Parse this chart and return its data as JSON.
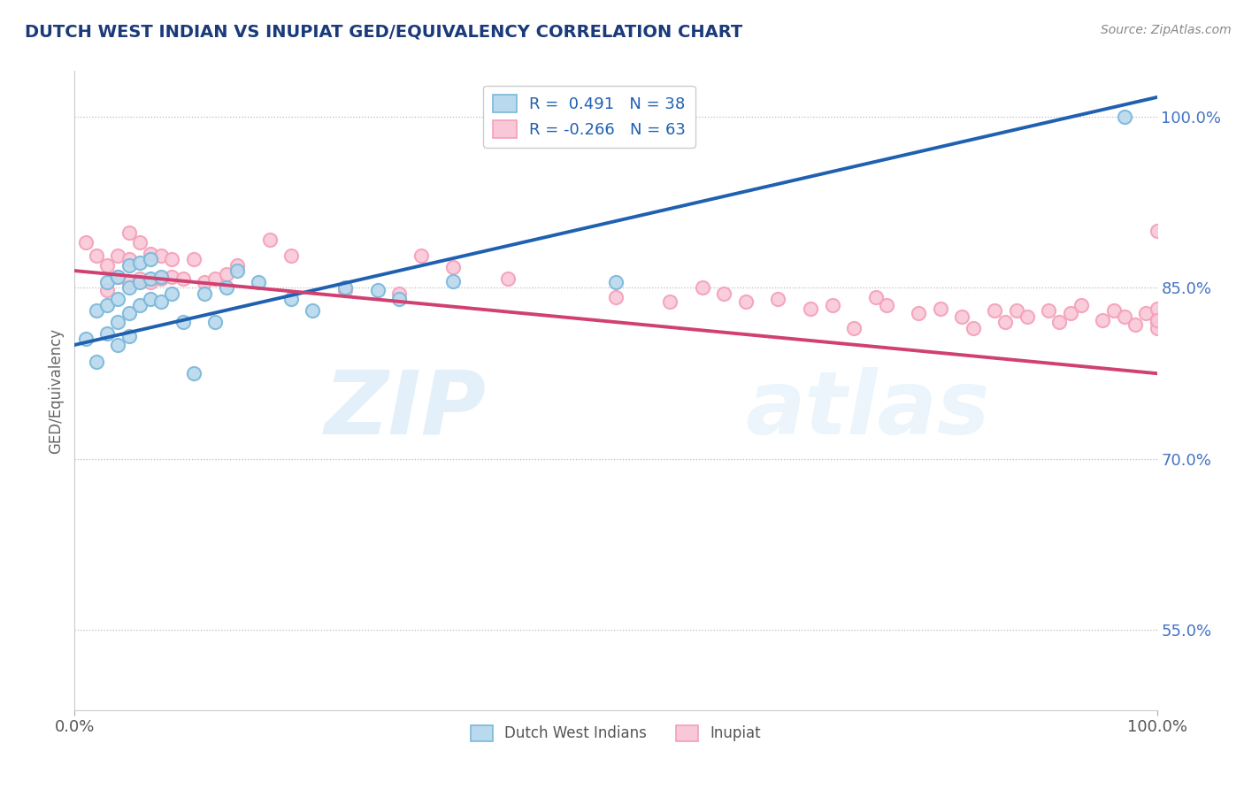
{
  "title": "DUTCH WEST INDIAN VS INUPIAT GED/EQUIVALENCY CORRELATION CHART",
  "source": "Source: ZipAtlas.com",
  "ylabel": "GED/Equivalency",
  "xlim": [
    0.0,
    1.0
  ],
  "ylim": [
    0.48,
    1.04
  ],
  "yticks": [
    0.55,
    0.7,
    0.85,
    1.0
  ],
  "ytick_labels": [
    "55.0%",
    "70.0%",
    "85.0%",
    "100.0%"
  ],
  "xtick_labels": [
    "0.0%",
    "100.0%"
  ],
  "legend_r_blue": "R =  0.491",
  "legend_n_blue": "N = 38",
  "legend_r_pink": "R = -0.266",
  "legend_n_pink": "N = 63",
  "blue_outline": "#7ab8d9",
  "pink_outline": "#f4a0b8",
  "blue_fill": "#b8d9ee",
  "pink_fill": "#f9c8d8",
  "trend_blue_color": "#2060b0",
  "trend_pink_color": "#d04070",
  "watermark_zip": "ZIP",
  "watermark_atlas": "atlas",
  "blue_x": [
    0.01,
    0.02,
    0.02,
    0.03,
    0.03,
    0.03,
    0.04,
    0.04,
    0.04,
    0.04,
    0.05,
    0.05,
    0.05,
    0.05,
    0.06,
    0.06,
    0.06,
    0.07,
    0.07,
    0.07,
    0.08,
    0.08,
    0.09,
    0.1,
    0.11,
    0.12,
    0.13,
    0.14,
    0.15,
    0.17,
    0.2,
    0.22,
    0.25,
    0.28,
    0.3,
    0.35,
    0.5,
    0.97
  ],
  "blue_y": [
    0.805,
    0.83,
    0.785,
    0.855,
    0.835,
    0.81,
    0.86,
    0.84,
    0.82,
    0.8,
    0.87,
    0.85,
    0.828,
    0.808,
    0.872,
    0.855,
    0.835,
    0.875,
    0.858,
    0.84,
    0.86,
    0.838,
    0.845,
    0.82,
    0.775,
    0.845,
    0.82,
    0.85,
    0.865,
    0.855,
    0.84,
    0.83,
    0.85,
    0.848,
    0.84,
    0.856,
    0.855,
    1.0
  ],
  "pink_x": [
    0.01,
    0.02,
    0.03,
    0.03,
    0.04,
    0.04,
    0.05,
    0.05,
    0.05,
    0.06,
    0.06,
    0.07,
    0.07,
    0.08,
    0.08,
    0.09,
    0.09,
    0.1,
    0.11,
    0.12,
    0.13,
    0.14,
    0.15,
    0.18,
    0.2,
    0.25,
    0.3,
    0.32,
    0.35,
    0.4,
    0.5,
    0.55,
    0.58,
    0.6,
    0.62,
    0.65,
    0.68,
    0.7,
    0.72,
    0.74,
    0.75,
    0.78,
    0.8,
    0.82,
    0.83,
    0.85,
    0.86,
    0.87,
    0.88,
    0.9,
    0.91,
    0.92,
    0.93,
    0.95,
    0.96,
    0.97,
    0.98,
    0.99,
    1.0,
    1.0,
    1.0,
    1.0,
    1.0
  ],
  "pink_y": [
    0.89,
    0.878,
    0.87,
    0.848,
    0.878,
    0.86,
    0.898,
    0.875,
    0.855,
    0.89,
    0.858,
    0.88,
    0.855,
    0.878,
    0.858,
    0.875,
    0.86,
    0.858,
    0.875,
    0.855,
    0.858,
    0.862,
    0.87,
    0.892,
    0.878,
    0.848,
    0.845,
    0.878,
    0.868,
    0.858,
    0.842,
    0.838,
    0.85,
    0.845,
    0.838,
    0.84,
    0.832,
    0.835,
    0.815,
    0.842,
    0.835,
    0.828,
    0.832,
    0.825,
    0.815,
    0.83,
    0.82,
    0.83,
    0.825,
    0.83,
    0.82,
    0.828,
    0.835,
    0.822,
    0.83,
    0.825,
    0.818,
    0.828,
    0.832,
    0.82,
    0.815,
    0.822,
    0.9
  ]
}
